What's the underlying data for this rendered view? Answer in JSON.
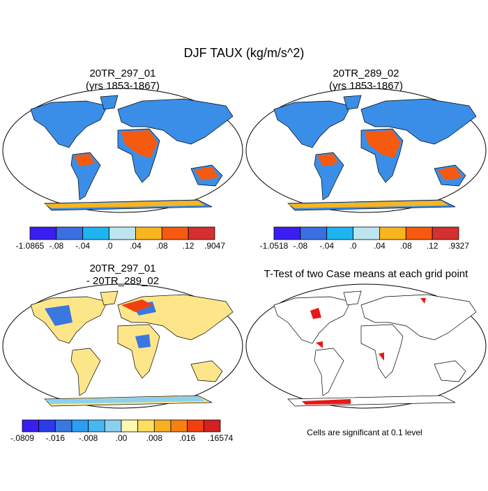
{
  "title": "DJF TAUX (kg/m/s^2)",
  "panels": [
    {
      "lines": [
        "20TR_297_01",
        "(yrs 1853-1867)"
      ]
    },
    {
      "lines": [
        "20TR_289_02",
        "(yrs 1853-1867)"
      ]
    },
    {
      "lines": [
        "20TR_297_01",
        "- 20TR_289_02"
      ]
    },
    {
      "lines": [
        "T-Test of two Case means at each grid point"
      ]
    }
  ],
  "colorbars": [
    {
      "colors": [
        "#3a1ef0",
        "#3a6fe0",
        "#1fb4f0",
        "#bde5f0",
        "#f8b520",
        "#f55a10",
        "#d43030"
      ],
      "labels": [
        "-1.0865",
        "-.08",
        "-.04",
        ".0",
        ".04",
        ".08",
        ".12",
        ".9047"
      ]
    },
    {
      "colors": [
        "#3a1ef0",
        "#3a6fe0",
        "#1fb4f0",
        "#bde5f0",
        "#f8b520",
        "#f55a10",
        "#d43030"
      ],
      "labels": [
        "-1.0518",
        "-.08",
        "-.04",
        ".0",
        ".04",
        ".08",
        ".12",
        ".9327"
      ]
    },
    {
      "colors": [
        "#3a1ef0",
        "#2a3ce8",
        "#3a78e0",
        "#2a9ef0",
        "#46b8f0",
        "#8cd0f0",
        "#fff8b0",
        "#fde060",
        "#f8b020",
        "#f88010",
        "#f04010",
        "#d42020"
      ],
      "labels": [
        "-.0809",
        "-.016",
        "-.008",
        ".00",
        ".008",
        ".016",
        ".16574"
      ]
    }
  ],
  "note": "Cells are significant at 0.1 level"
}
